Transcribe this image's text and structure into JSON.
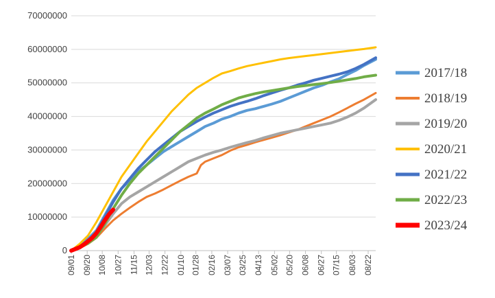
{
  "chart_data": {
    "type": "line",
    "title": "",
    "xlabel": "",
    "ylabel": "",
    "ylim": [
      0,
      70000000
    ],
    "ytick_labels": [
      "0",
      "10000000",
      "20000000",
      "30000000",
      "40000000",
      "50000000",
      "60000000",
      "70000000"
    ],
    "yticks": [
      0,
      10000000,
      20000000,
      30000000,
      40000000,
      50000000,
      60000000,
      70000000
    ],
    "x_tick_labels": [
      "09/01",
      "09/20",
      "10/08",
      "10/27",
      "11/15",
      "12/03",
      "12/22",
      "01/10",
      "01/28",
      "02/16",
      "03/07",
      "03/25",
      "04/13",
      "05/02",
      "05/20",
      "06/08",
      "06/27",
      "07/15",
      "08/03",
      "08/22"
    ],
    "x_tick_days": [
      0,
      19,
      37,
      56,
      75,
      93,
      112,
      131,
      149,
      168,
      187,
      205,
      224,
      243,
      261,
      280,
      299,
      317,
      336,
      355
    ],
    "x_range_days": [
      0,
      364
    ],
    "grid": "horizontal",
    "legend_position": "right",
    "series": [
      {
        "name": "2017/18",
        "color": "#5B9BD5",
        "width": 4,
        "points": [
          [
            0,
            0
          ],
          [
            10,
            1500000
          ],
          [
            20,
            3500000
          ],
          [
            30,
            6000000
          ],
          [
            40,
            10500000
          ],
          [
            50,
            15000000
          ],
          [
            60,
            18500000
          ],
          [
            70,
            21000000
          ],
          [
            80,
            23500000
          ],
          [
            90,
            25500000
          ],
          [
            100,
            27500000
          ],
          [
            110,
            29500000
          ],
          [
            120,
            31000000
          ],
          [
            130,
            32500000
          ],
          [
            140,
            34000000
          ],
          [
            150,
            35500000
          ],
          [
            160,
            37000000
          ],
          [
            170,
            38000000
          ],
          [
            180,
            39200000
          ],
          [
            190,
            40000000
          ],
          [
            200,
            41000000
          ],
          [
            210,
            41800000
          ],
          [
            220,
            42300000
          ],
          [
            230,
            43000000
          ],
          [
            240,
            43700000
          ],
          [
            250,
            44500000
          ],
          [
            260,
            45500000
          ],
          [
            270,
            46500000
          ],
          [
            280,
            47500000
          ],
          [
            290,
            48500000
          ],
          [
            300,
            49300000
          ],
          [
            310,
            50300000
          ],
          [
            320,
            51200000
          ],
          [
            330,
            52500000
          ],
          [
            340,
            53700000
          ],
          [
            350,
            55200000
          ],
          [
            364,
            57000000
          ]
        ]
      },
      {
        "name": "2018/19",
        "color": "#ED7D31",
        "width": 3,
        "points": [
          [
            0,
            0
          ],
          [
            10,
            800000
          ],
          [
            20,
            2000000
          ],
          [
            30,
            3800000
          ],
          [
            40,
            6500000
          ],
          [
            50,
            9000000
          ],
          [
            60,
            11000000
          ],
          [
            70,
            12800000
          ],
          [
            80,
            14500000
          ],
          [
            90,
            16000000
          ],
          [
            100,
            17000000
          ],
          [
            110,
            18200000
          ],
          [
            120,
            19500000
          ],
          [
            130,
            20800000
          ],
          [
            140,
            22000000
          ],
          [
            150,
            23000000
          ],
          [
            155,
            25500000
          ],
          [
            160,
            26500000
          ],
          [
            170,
            27500000
          ],
          [
            180,
            28500000
          ],
          [
            190,
            29800000
          ],
          [
            200,
            30800000
          ],
          [
            210,
            31500000
          ],
          [
            220,
            32300000
          ],
          [
            230,
            33000000
          ],
          [
            240,
            33700000
          ],
          [
            250,
            34400000
          ],
          [
            260,
            35200000
          ],
          [
            270,
            36000000
          ],
          [
            280,
            37000000
          ],
          [
            290,
            38000000
          ],
          [
            300,
            39000000
          ],
          [
            310,
            40000000
          ],
          [
            320,
            41200000
          ],
          [
            330,
            42500000
          ],
          [
            340,
            43800000
          ],
          [
            350,
            45000000
          ],
          [
            364,
            47000000
          ]
        ]
      },
      {
        "name": "2019/20",
        "color": "#A5A5A5",
        "width": 4,
        "points": [
          [
            0,
            0
          ],
          [
            10,
            1000000
          ],
          [
            20,
            2500000
          ],
          [
            30,
            4500000
          ],
          [
            40,
            7500000
          ],
          [
            50,
            11000000
          ],
          [
            60,
            14000000
          ],
          [
            70,
            16000000
          ],
          [
            80,
            17500000
          ],
          [
            90,
            19000000
          ],
          [
            100,
            20500000
          ],
          [
            110,
            22000000
          ],
          [
            120,
            23500000
          ],
          [
            130,
            25000000
          ],
          [
            140,
            26500000
          ],
          [
            150,
            27500000
          ],
          [
            160,
            28500000
          ],
          [
            170,
            29300000
          ],
          [
            180,
            30000000
          ],
          [
            190,
            30800000
          ],
          [
            200,
            31500000
          ],
          [
            210,
            32200000
          ],
          [
            220,
            32800000
          ],
          [
            230,
            33600000
          ],
          [
            240,
            34300000
          ],
          [
            250,
            35000000
          ],
          [
            260,
            35500000
          ],
          [
            270,
            36000000
          ],
          [
            280,
            36500000
          ],
          [
            290,
            37000000
          ],
          [
            300,
            37500000
          ],
          [
            310,
            38000000
          ],
          [
            320,
            38800000
          ],
          [
            330,
            39800000
          ],
          [
            340,
            41000000
          ],
          [
            350,
            42500000
          ],
          [
            364,
            45000000
          ]
        ]
      },
      {
        "name": "2020/21",
        "color": "#FFC000",
        "width": 3,
        "points": [
          [
            0,
            0
          ],
          [
            10,
            2000000
          ],
          [
            20,
            4500000
          ],
          [
            30,
            8500000
          ],
          [
            40,
            13000000
          ],
          [
            50,
            17500000
          ],
          [
            60,
            22000000
          ],
          [
            70,
            25500000
          ],
          [
            80,
            29000000
          ],
          [
            90,
            32500000
          ],
          [
            100,
            35500000
          ],
          [
            110,
            38500000
          ],
          [
            120,
            41500000
          ],
          [
            130,
            44000000
          ],
          [
            140,
            46500000
          ],
          [
            150,
            48500000
          ],
          [
            160,
            50000000
          ],
          [
            170,
            51500000
          ],
          [
            180,
            52800000
          ],
          [
            190,
            53500000
          ],
          [
            200,
            54300000
          ],
          [
            210,
            55000000
          ],
          [
            220,
            55500000
          ],
          [
            230,
            56000000
          ],
          [
            240,
            56500000
          ],
          [
            250,
            57000000
          ],
          [
            260,
            57400000
          ],
          [
            270,
            57700000
          ],
          [
            280,
            58000000
          ],
          [
            290,
            58300000
          ],
          [
            300,
            58600000
          ],
          [
            310,
            58900000
          ],
          [
            320,
            59200000
          ],
          [
            330,
            59500000
          ],
          [
            340,
            59800000
          ],
          [
            350,
            60100000
          ],
          [
            364,
            60600000
          ]
        ]
      },
      {
        "name": "2021/22",
        "color": "#4472C4",
        "width": 4,
        "points": [
          [
            0,
            0
          ],
          [
            10,
            1200000
          ],
          [
            20,
            3000000
          ],
          [
            30,
            5500000
          ],
          [
            40,
            10000000
          ],
          [
            50,
            14500000
          ],
          [
            60,
            18500000
          ],
          [
            70,
            21500000
          ],
          [
            80,
            24500000
          ],
          [
            90,
            27000000
          ],
          [
            100,
            29500000
          ],
          [
            110,
            31500000
          ],
          [
            120,
            33500000
          ],
          [
            130,
            35500000
          ],
          [
            140,
            37000000
          ],
          [
            150,
            38500000
          ],
          [
            160,
            39800000
          ],
          [
            170,
            41000000
          ],
          [
            180,
            42000000
          ],
          [
            190,
            43000000
          ],
          [
            200,
            43800000
          ],
          [
            210,
            44500000
          ],
          [
            220,
            45300000
          ],
          [
            230,
            46200000
          ],
          [
            240,
            47000000
          ],
          [
            250,
            47800000
          ],
          [
            260,
            48500000
          ],
          [
            270,
            49300000
          ],
          [
            280,
            50000000
          ],
          [
            290,
            50800000
          ],
          [
            300,
            51400000
          ],
          [
            310,
            52000000
          ],
          [
            320,
            52600000
          ],
          [
            330,
            53300000
          ],
          [
            340,
            54300000
          ],
          [
            350,
            55500000
          ],
          [
            364,
            57500000
          ]
        ]
      },
      {
        "name": "2022/23",
        "color": "#70AD47",
        "width": 4,
        "points": [
          [
            0,
            0
          ],
          [
            10,
            1000000
          ],
          [
            20,
            2200000
          ],
          [
            30,
            4000000
          ],
          [
            40,
            8000000
          ],
          [
            50,
            12500000
          ],
          [
            60,
            16500000
          ],
          [
            70,
            20000000
          ],
          [
            80,
            23000000
          ],
          [
            90,
            25500000
          ],
          [
            100,
            28000000
          ],
          [
            110,
            30500000
          ],
          [
            120,
            33000000
          ],
          [
            130,
            35500000
          ],
          [
            140,
            37500000
          ],
          [
            150,
            39500000
          ],
          [
            160,
            41000000
          ],
          [
            170,
            42200000
          ],
          [
            180,
            43500000
          ],
          [
            190,
            44500000
          ],
          [
            200,
            45500000
          ],
          [
            210,
            46200000
          ],
          [
            220,
            46800000
          ],
          [
            230,
            47300000
          ],
          [
            240,
            47700000
          ],
          [
            250,
            48100000
          ],
          [
            260,
            48500000
          ],
          [
            270,
            48900000
          ],
          [
            280,
            49200000
          ],
          [
            290,
            49500000
          ],
          [
            300,
            49800000
          ],
          [
            310,
            50100000
          ],
          [
            320,
            50500000
          ],
          [
            330,
            50900000
          ],
          [
            340,
            51300000
          ],
          [
            350,
            51800000
          ],
          [
            364,
            52300000
          ]
        ]
      },
      {
        "name": "2023/24",
        "color": "#FF0000",
        "width": 6,
        "points": [
          [
            0,
            0
          ],
          [
            5,
            500000
          ],
          [
            10,
            1000000
          ],
          [
            15,
            1800000
          ],
          [
            20,
            2800000
          ],
          [
            25,
            3800000
          ],
          [
            30,
            5200000
          ],
          [
            35,
            7000000
          ],
          [
            40,
            9000000
          ],
          [
            45,
            10800000
          ],
          [
            50,
            12200000
          ]
        ]
      }
    ]
  }
}
